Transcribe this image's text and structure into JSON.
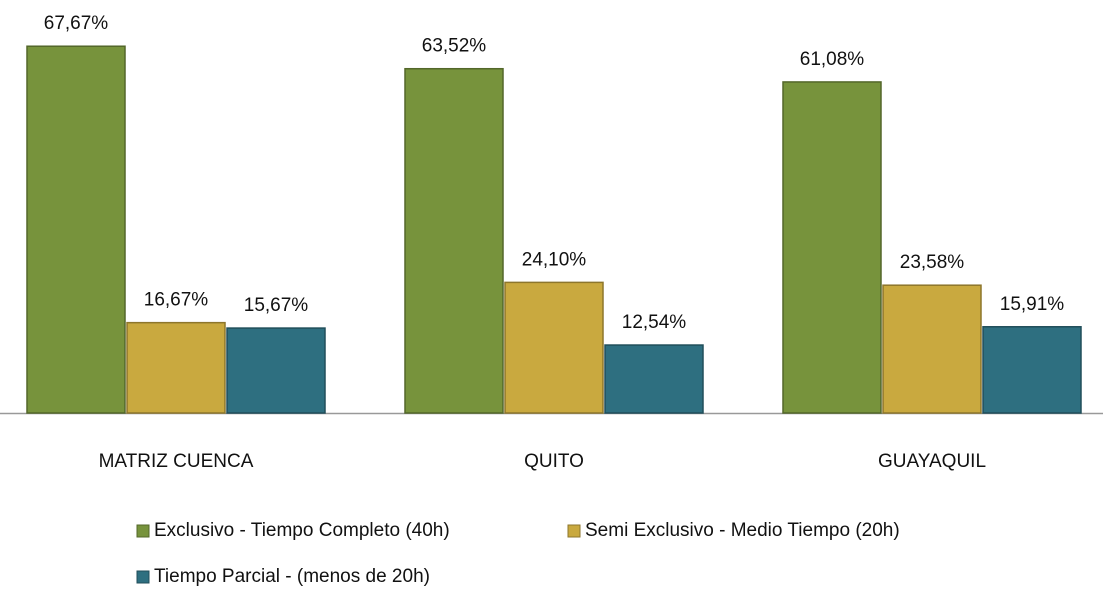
{
  "chart_data": {
    "type": "bar",
    "categories": [
      "MATRIZ CUENCA",
      "QUITO",
      "GUAYAQUIL"
    ],
    "series": [
      {
        "name": "Exclusivo - Tiempo Completo (40h)",
        "color": "#77933c",
        "values": [
          67.67,
          63.52,
          61.08
        ],
        "value_labels": [
          "67,67%",
          "63,52%",
          "61,08%"
        ]
      },
      {
        "name": "Semi Exclusivo - Medio Tiempo (20h)",
        "color": "#c9a93f",
        "values": [
          16.67,
          24.1,
          23.58
        ],
        "value_labels": [
          "16,67%",
          "24,10%",
          "23,58%"
        ]
      },
      {
        "name": "Tiempo Parcial - (menos de 20h)",
        "color": "#2e6f80",
        "values": [
          15.67,
          12.54,
          15.91
        ],
        "value_labels": [
          "15,67%",
          "12,54%",
          "15,91%"
        ]
      }
    ]
  }
}
